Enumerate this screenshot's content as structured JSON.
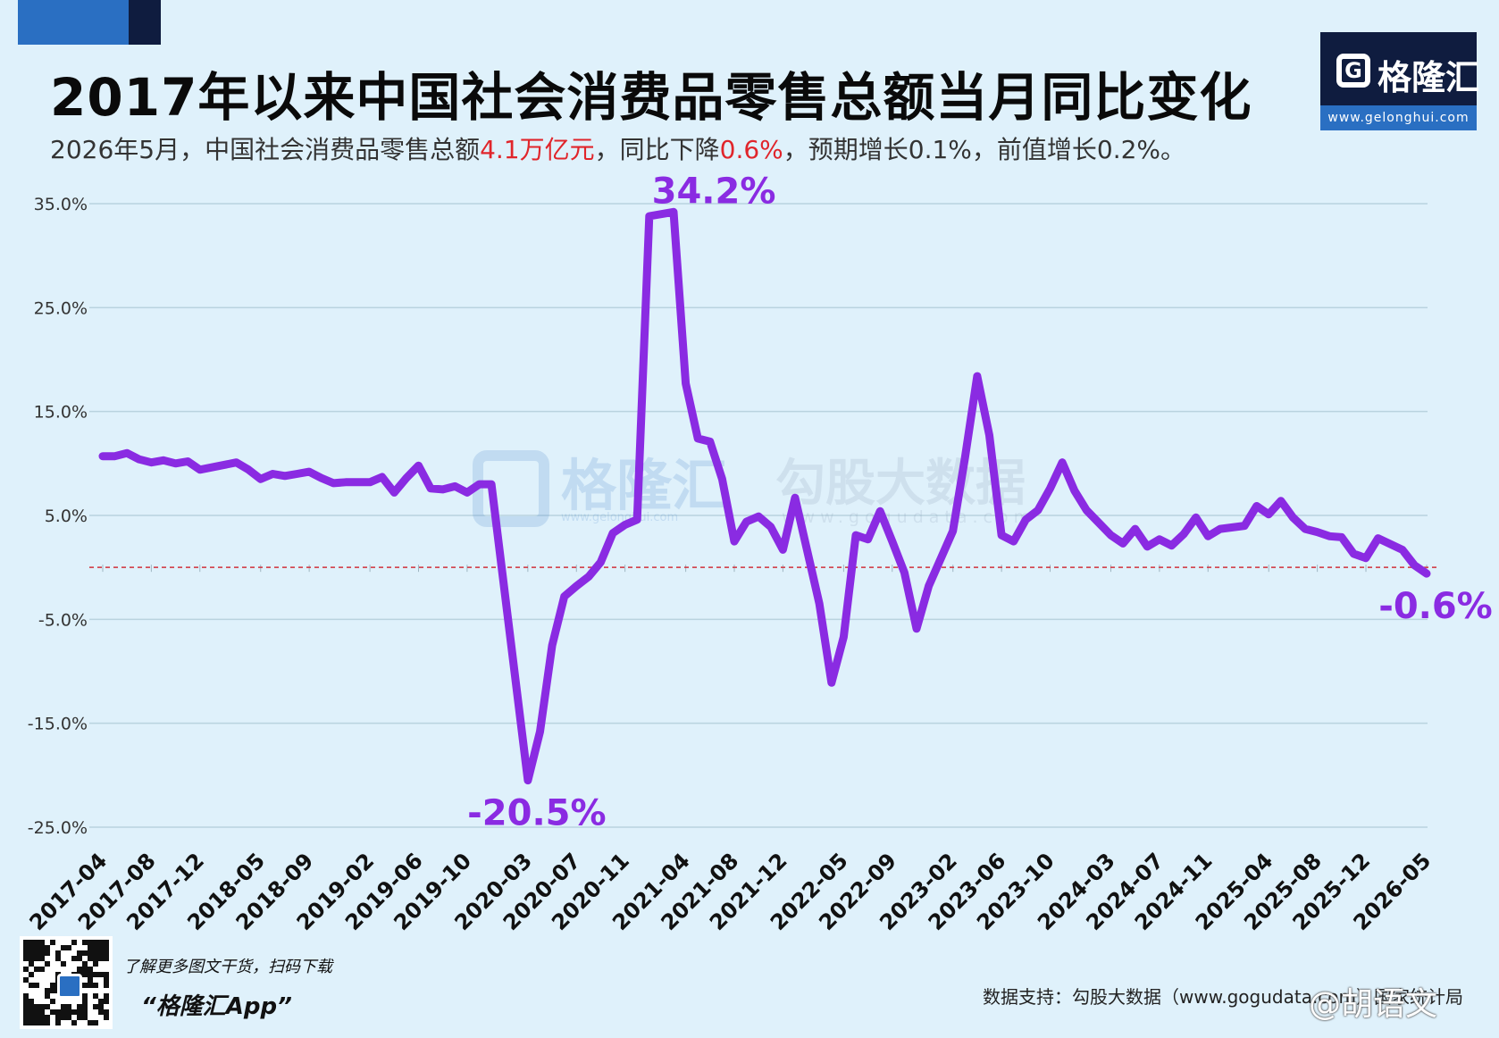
{
  "header": {
    "title": "2017年以来中国社会消费品零售总额当月同比变化",
    "subtitle_parts": {
      "p1": "2026年5月，中国社会消费品零售总额",
      "h1": "4.1万亿元",
      "p2": "，同比下降",
      "h2": "0.6%",
      "p3": "，预期增长0.1%，前值增长0.2%。"
    },
    "highlight_color": "#e0252b"
  },
  "logo": {
    "name": "格隆汇",
    "url": "www.gelonghui.com"
  },
  "watermark": {
    "left": "格隆汇",
    "right": "勾股大数据",
    "left_url": "www.gelonghui.com",
    "right_url": "www.gogudata.com"
  },
  "footer": {
    "promo": "了解更多图文干货，扫码下载",
    "app_name": "“格隆汇App”",
    "source": "数据支持：勾股大数据（www.gogudata.com）国家统计局",
    "handle": "@胡语文"
  },
  "chart_data": {
    "type": "line",
    "title": "2017年以来中国社会消费品零售总额当月同比变化",
    "ylim": [
      -25,
      35
    ],
    "yticks": [
      -25,
      -15,
      -5,
      5,
      15,
      25,
      35
    ],
    "ytick_labels": [
      "-25.0%",
      "-15.0%",
      "-5.0%",
      "5.0%",
      "15.0%",
      "25.0%",
      "35.0%"
    ],
    "xtick_labels": [
      "2017-04",
      "2017-08",
      "2017-12",
      "2018-05",
      "2018-09",
      "2019-02",
      "2019-06",
      "2019-10",
      "2020-03",
      "2020-07",
      "2020-11",
      "2021-04",
      "2021-08",
      "2021-12",
      "2022-05",
      "2022-09",
      "2023-02",
      "2023-06",
      "2023-10",
      "2024-03",
      "2024-07",
      "2024-11",
      "2025-04",
      "2025-08",
      "2025-12",
      "2026-05"
    ],
    "grid": true,
    "reference_line": 0,
    "line_color": "#8a2be2",
    "reference_color": "#d0303a",
    "annotations": [
      {
        "x": "2021-03",
        "y": 34.2,
        "label": "34.2%"
      },
      {
        "x": "2020-03",
        "y": -20.5,
        "label": "-20.5%"
      },
      {
        "x": "2026-05",
        "y": -0.6,
        "label": "-0.6%"
      }
    ],
    "series": [
      {
        "points": [
          [
            "2017-04",
            10.7
          ],
          [
            "2017-05",
            10.7
          ],
          [
            "2017-06",
            11.0
          ],
          [
            "2017-07",
            10.4
          ],
          [
            "2017-08",
            10.1
          ],
          [
            "2017-09",
            10.3
          ],
          [
            "2017-10",
            10.0
          ],
          [
            "2017-11",
            10.2
          ],
          [
            "2017-12",
            9.4
          ],
          [
            "2018-03",
            10.1
          ],
          [
            "2018-04",
            9.4
          ],
          [
            "2018-05",
            8.5
          ],
          [
            "2018-06",
            9.0
          ],
          [
            "2018-07",
            8.8
          ],
          [
            "2018-08",
            9.0
          ],
          [
            "2018-09",
            9.2
          ],
          [
            "2018-10",
            8.6
          ],
          [
            "2018-11",
            8.1
          ],
          [
            "2018-12",
            8.2
          ],
          [
            "2019-02",
            8.2
          ],
          [
            "2019-03",
            8.7
          ],
          [
            "2019-04",
            7.2
          ],
          [
            "2019-05",
            8.6
          ],
          [
            "2019-06",
            9.8
          ],
          [
            "2019-07",
            7.6
          ],
          [
            "2019-08",
            7.5
          ],
          [
            "2019-09",
            7.8
          ],
          [
            "2019-10",
            7.2
          ],
          [
            "2019-11",
            8.0
          ],
          [
            "2019-12",
            8.0
          ],
          [
            "2020-03",
            -20.5
          ],
          [
            "2020-04",
            -15.8
          ],
          [
            "2020-05",
            -7.5
          ],
          [
            "2020-06",
            -2.8
          ],
          [
            "2020-07",
            -1.8
          ],
          [
            "2020-08",
            -0.9
          ],
          [
            "2020-09",
            0.5
          ],
          [
            "2020-10",
            3.3
          ],
          [
            "2020-11",
            4.1
          ],
          [
            "2020-12",
            4.6
          ],
          [
            "2021-01",
            33.8
          ],
          [
            "2021-03",
            34.2
          ],
          [
            "2021-04",
            17.7
          ],
          [
            "2021-05",
            12.4
          ],
          [
            "2021-06",
            12.1
          ],
          [
            "2021-07",
            8.5
          ],
          [
            "2021-08",
            2.5
          ],
          [
            "2021-09",
            4.4
          ],
          [
            "2021-10",
            4.9
          ],
          [
            "2021-11",
            3.9
          ],
          [
            "2021-12",
            1.7
          ],
          [
            "2022-01",
            6.7
          ],
          [
            "2022-03",
            -3.5
          ],
          [
            "2022-04",
            -11.1
          ],
          [
            "2022-05",
            -6.7
          ],
          [
            "2022-06",
            3.1
          ],
          [
            "2022-07",
            2.7
          ],
          [
            "2022-08",
            5.4
          ],
          [
            "2022-09",
            2.5
          ],
          [
            "2022-10",
            -0.5
          ],
          [
            "2022-11",
            -5.9
          ],
          [
            "2022-12",
            -1.8
          ],
          [
            "2023-02",
            3.5
          ],
          [
            "2023-03",
            10.6
          ],
          [
            "2023-04",
            18.4
          ],
          [
            "2023-05",
            12.7
          ],
          [
            "2023-06",
            3.1
          ],
          [
            "2023-07",
            2.5
          ],
          [
            "2023-08",
            4.6
          ],
          [
            "2023-09",
            5.5
          ],
          [
            "2023-10",
            7.6
          ],
          [
            "2023-11",
            10.1
          ],
          [
            "2023-12",
            7.4
          ],
          [
            "2024-01",
            5.5
          ],
          [
            "2024-03",
            3.1
          ],
          [
            "2024-04",
            2.3
          ],
          [
            "2024-05",
            3.7
          ],
          [
            "2024-06",
            2.0
          ],
          [
            "2024-07",
            2.7
          ],
          [
            "2024-08",
            2.1
          ],
          [
            "2024-09",
            3.2
          ],
          [
            "2024-10",
            4.8
          ],
          [
            "2024-11",
            3.0
          ],
          [
            "2024-12",
            3.7
          ],
          [
            "2025-02",
            4.0
          ],
          [
            "2025-03",
            5.9
          ],
          [
            "2025-04",
            5.1
          ],
          [
            "2025-05",
            6.4
          ],
          [
            "2025-06",
            4.8
          ],
          [
            "2025-07",
            3.7
          ],
          [
            "2025-08",
            3.4
          ],
          [
            "2025-09",
            3.0
          ],
          [
            "2025-10",
            2.9
          ],
          [
            "2025-11",
            1.3
          ],
          [
            "2025-12",
            0.9
          ],
          [
            "2026-01",
            2.8
          ],
          [
            "2026-03",
            1.7
          ],
          [
            "2026-04",
            0.2
          ],
          [
            "2026-05",
            -0.6
          ]
        ]
      }
    ]
  }
}
